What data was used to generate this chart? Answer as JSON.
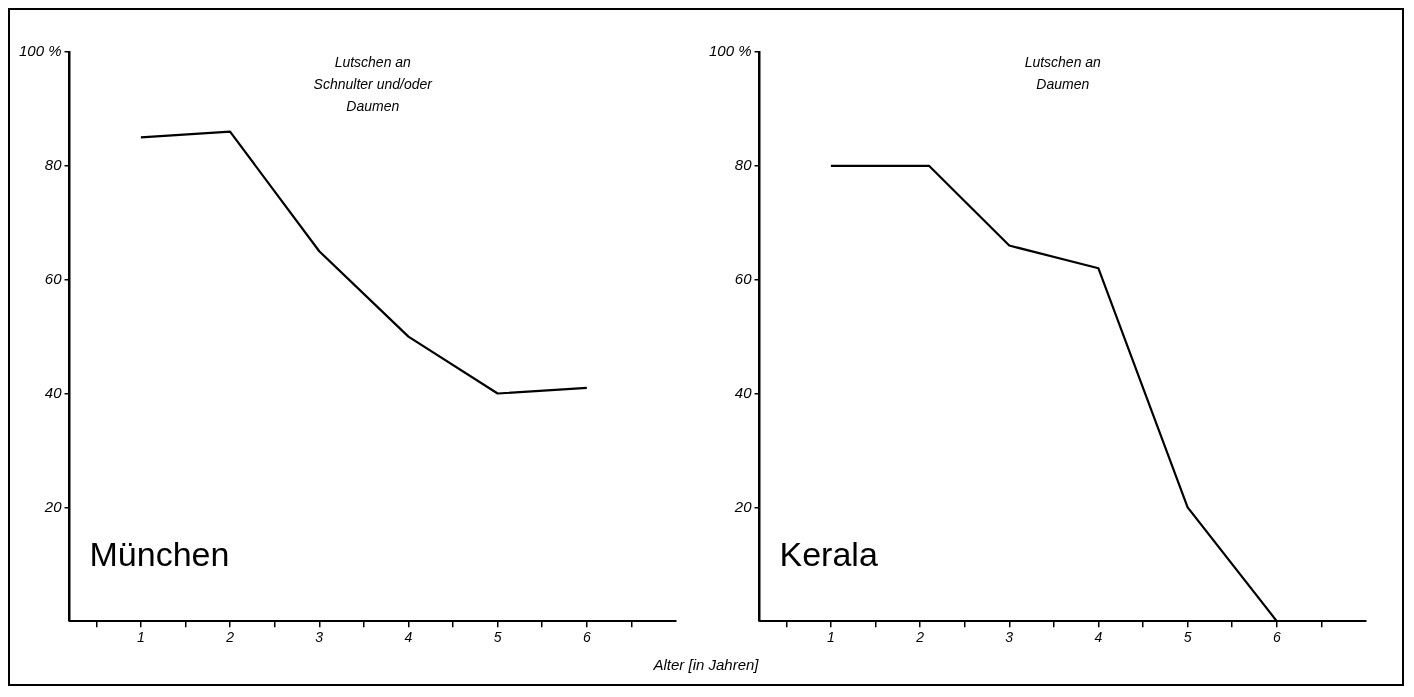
{
  "chart_data": [
    {
      "type": "line",
      "title": "München",
      "annotations": [
        "Lutschen an",
        "Schnulter und/oder",
        "Daumen"
      ],
      "xlabel": "Alter [in Jahren]",
      "x": [
        1,
        2,
        3,
        4,
        5,
        6
      ],
      "series": [
        {
          "color": "#000000",
          "values": [
            85,
            86,
            65,
            50,
            40,
            41
          ]
        }
      ],
      "xlim": [
        0.2,
        7
      ],
      "xticks": [
        {
          "value": 0.5,
          "label": null
        },
        1,
        {
          "value": 1.5,
          "label": null
        },
        2,
        {
          "value": 2.5,
          "label": null
        },
        3,
        {
          "value": 3.5,
          "label": null
        },
        4,
        {
          "value": 4.5,
          "label": null
        },
        5,
        {
          "value": 5.5,
          "label": null
        },
        6,
        {
          "value": 6.5,
          "label": null
        }
      ],
      "ylim": [
        0,
        100
      ],
      "yticks": [
        20,
        40,
        60,
        80,
        {
          "value": 100,
          "label": "100 %"
        }
      ],
      "marker": "none",
      "line_style": "solid",
      "grid": false,
      "legend": false
    },
    {
      "type": "line",
      "title": "Kerala",
      "annotations": [
        "Lutschen an",
        "Daumen"
      ],
      "x": [
        1,
        2.1,
        3,
        4,
        5,
        6
      ],
      "series": [
        {
          "color": "#000000",
          "values": [
            80,
            80,
            66,
            62,
            20,
            0
          ]
        }
      ],
      "xlim": [
        0.2,
        7
      ],
      "xticks": [
        {
          "value": 0.5,
          "label": null
        },
        1,
        {
          "value": 1.5,
          "label": null
        },
        2,
        {
          "value": 2.5,
          "label": null
        },
        3,
        {
          "value": 3.5,
          "label": null
        },
        4,
        {
          "value": 4.5,
          "label": null
        },
        5,
        {
          "value": 5.5,
          "label": null
        },
        6,
        {
          "value": 6.5,
          "label": null
        }
      ],
      "ylim": [
        0,
        100
      ],
      "yticks": [
        20,
        40,
        60,
        80,
        {
          "value": 100,
          "label": "100 %"
        }
      ],
      "marker": "none",
      "line_style": "solid",
      "grid": false,
      "legend": false
    }
  ]
}
